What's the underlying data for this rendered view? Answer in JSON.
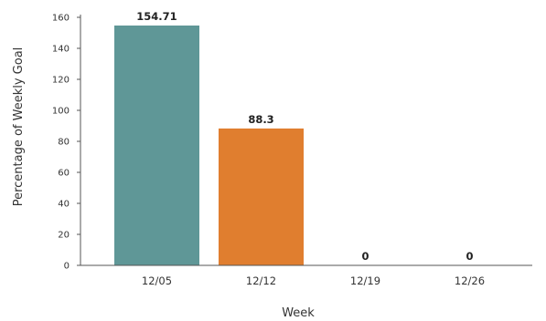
{
  "chart_data": {
    "type": "bar",
    "title": "",
    "xlabel": "Week",
    "ylabel": "Percentage of Weekly Goal",
    "categories": [
      "12/05",
      "12/12",
      "12/19",
      "12/26"
    ],
    "values": [
      154.71,
      88.3,
      0,
      0
    ],
    "value_labels": [
      "154.71",
      "88.3",
      "0",
      "0"
    ],
    "bar_colors": [
      "#5f9797",
      "#e07e2f",
      "#5f9797",
      "#5f9797"
    ],
    "ylim": [
      0,
      160
    ],
    "yticks": [
      0,
      20,
      40,
      60,
      80,
      100,
      120,
      140,
      160
    ],
    "grid": false,
    "legend": "none"
  }
}
